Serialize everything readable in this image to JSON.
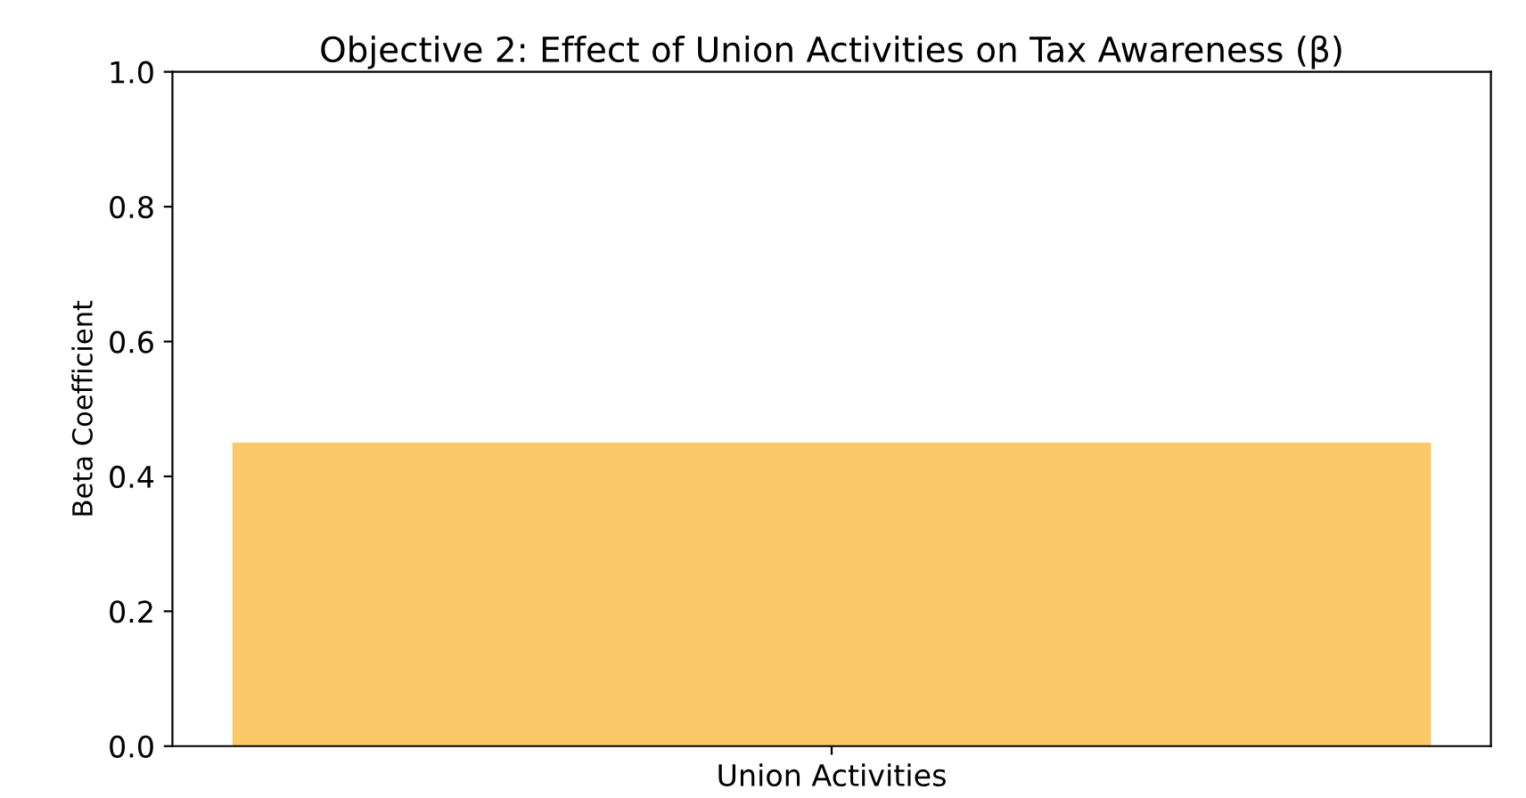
{
  "chart_data": {
    "type": "bar",
    "title": "Objective 2: Effect of Union Activities on Tax Awareness (β)",
    "ylabel": "Beta Coefficient",
    "categories": [
      "Union Activities"
    ],
    "values": [
      0.45
    ],
    "color": "#fbc96a",
    "ylim": [
      0,
      1.0
    ],
    "yticks": [
      {
        "value": 0,
        "label": "0.0"
      },
      0.2,
      0.4,
      0.6,
      0.8,
      {
        "value": 1,
        "label": "1.0"
      }
    ],
    "grid": false
  }
}
